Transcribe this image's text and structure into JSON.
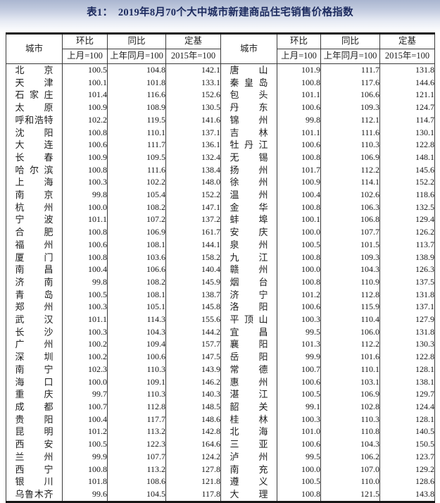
{
  "page": {
    "title": "表1：　2019年8月70个大中城市新建商品住宅销售价格指数"
  },
  "table": {
    "header": {
      "city": "城市",
      "mom": "环比",
      "mom_base": "上月=100",
      "yoy": "同比",
      "yoy_base": "上年同月=100",
      "fixed": "定基",
      "fixed_base": "2015年=100"
    }
  },
  "chart_data": {
    "type": "table",
    "title": "表1： 2019年8月70个大中城市新建商品住宅销售价格指数",
    "columns": [
      "城市",
      "环比(上月=100)",
      "同比(上年同月=100)",
      "定基(2015年=100)",
      "城市",
      "环比(上月=100)",
      "同比(上年同月=100)",
      "定基(2015年=100)"
    ],
    "rows": [
      [
        "北京",
        "100.5",
        "104.8",
        "142.1",
        "唐山",
        "101.9",
        "111.7",
        "131.8"
      ],
      [
        "天津",
        "100.1",
        "101.8",
        "133.1",
        "秦皇岛",
        "100.8",
        "117.6",
        "144.6"
      ],
      [
        "石家庄",
        "101.4",
        "116.6",
        "152.6",
        "包头",
        "101.1",
        "106.6",
        "121.1"
      ],
      [
        "太原",
        "100.9",
        "108.9",
        "130.5",
        "丹东",
        "100.6",
        "109.3",
        "124.7"
      ],
      [
        "呼和浩特",
        "102.2",
        "119.5",
        "141.6",
        "锦州",
        "99.8",
        "112.1",
        "114.7"
      ],
      [
        "沈阳",
        "100.8",
        "110.1",
        "137.1",
        "吉林",
        "101.1",
        "111.6",
        "130.1"
      ],
      [
        "大连",
        "100.6",
        "111.7",
        "136.1",
        "牡丹江",
        "100.6",
        "110.3",
        "122.8"
      ],
      [
        "长春",
        "100.9",
        "109.5",
        "132.4",
        "无锡",
        "100.8",
        "106.9",
        "148.1"
      ],
      [
        "哈尔滨",
        "100.8",
        "111.6",
        "138.4",
        "扬州",
        "101.7",
        "112.2",
        "145.6"
      ],
      [
        "上海",
        "100.3",
        "102.2",
        "148.0",
        "徐州",
        "100.9",
        "114.1",
        "152.2"
      ],
      [
        "南京",
        "99.8",
        "105.4",
        "152.2",
        "温州",
        "100.4",
        "102.6",
        "118.6"
      ],
      [
        "杭州",
        "100.0",
        "108.2",
        "147.1",
        "金华",
        "100.8",
        "106.3",
        "132.5"
      ],
      [
        "宁波",
        "101.1",
        "107.2",
        "137.2",
        "蚌埠",
        "100.1",
        "106.8",
        "129.4"
      ],
      [
        "合肥",
        "100.8",
        "106.9",
        "161.7",
        "安庆",
        "100.0",
        "107.7",
        "126.2"
      ],
      [
        "福州",
        "100.6",
        "108.1",
        "144.1",
        "泉州",
        "100.5",
        "101.5",
        "113.7"
      ],
      [
        "厦门",
        "100.8",
        "103.6",
        "158.2",
        "九江",
        "100.8",
        "109.3",
        "138.9"
      ],
      [
        "南昌",
        "100.4",
        "106.6",
        "140.4",
        "赣州",
        "100.0",
        "104.3",
        "126.3"
      ],
      [
        "济南",
        "99.8",
        "108.2",
        "145.9",
        "烟台",
        "100.8",
        "110.9",
        "137.5"
      ],
      [
        "青岛",
        "100.5",
        "108.1",
        "138.7",
        "济宁",
        "101.2",
        "112.8",
        "131.8"
      ],
      [
        "郑州",
        "100.3",
        "105.1",
        "145.8",
        "洛阳",
        "100.6",
        "115.9",
        "137.1"
      ],
      [
        "武汉",
        "101.1",
        "114.3",
        "155.6",
        "平顶山",
        "100.3",
        "110.4",
        "127.9"
      ],
      [
        "长沙",
        "100.3",
        "104.3",
        "144.2",
        "宜昌",
        "99.5",
        "106.0",
        "131.8"
      ],
      [
        "广州",
        "100.2",
        "109.4",
        "157.7",
        "襄阳",
        "101.3",
        "112.2",
        "130.3"
      ],
      [
        "深圳",
        "100.2",
        "100.6",
        "147.5",
        "岳阳",
        "99.9",
        "101.6",
        "122.8"
      ],
      [
        "南宁",
        "102.3",
        "110.3",
        "143.9",
        "常德",
        "100.7",
        "110.1",
        "128.1"
      ],
      [
        "海口",
        "100.0",
        "109.1",
        "146.2",
        "惠州",
        "100.6",
        "103.1",
        "138.1"
      ],
      [
        "重庆",
        "99.7",
        "110.3",
        "140.3",
        "湛江",
        "100.5",
        "106.9",
        "129.7"
      ],
      [
        "成都",
        "100.7",
        "112.8",
        "148.5",
        "韶关",
        "99.1",
        "102.8",
        "124.4"
      ],
      [
        "贵阳",
        "100.4",
        "117.7",
        "148.6",
        "桂林",
        "100.3",
        "110.3",
        "128.1"
      ],
      [
        "昆明",
        "101.2",
        "113.2",
        "142.8",
        "北海",
        "101.0",
        "110.8",
        "140.5"
      ],
      [
        "西安",
        "100.5",
        "122.3",
        "164.6",
        "三亚",
        "100.6",
        "104.3",
        "150.5"
      ],
      [
        "兰州",
        "99.9",
        "107.7",
        "124.2",
        "泸州",
        "99.5",
        "106.2",
        "123.7"
      ],
      [
        "西宁",
        "100.8",
        "113.2",
        "127.8",
        "南充",
        "100.0",
        "107.0",
        "129.2"
      ],
      [
        "银川",
        "101.8",
        "108.6",
        "121.8",
        "遵义",
        "100.5",
        "110.0",
        "128.6"
      ],
      [
        "乌鲁木齐",
        "99.6",
        "104.5",
        "117.8",
        "大理",
        "100.8",
        "121.5",
        "143.8"
      ]
    ]
  }
}
